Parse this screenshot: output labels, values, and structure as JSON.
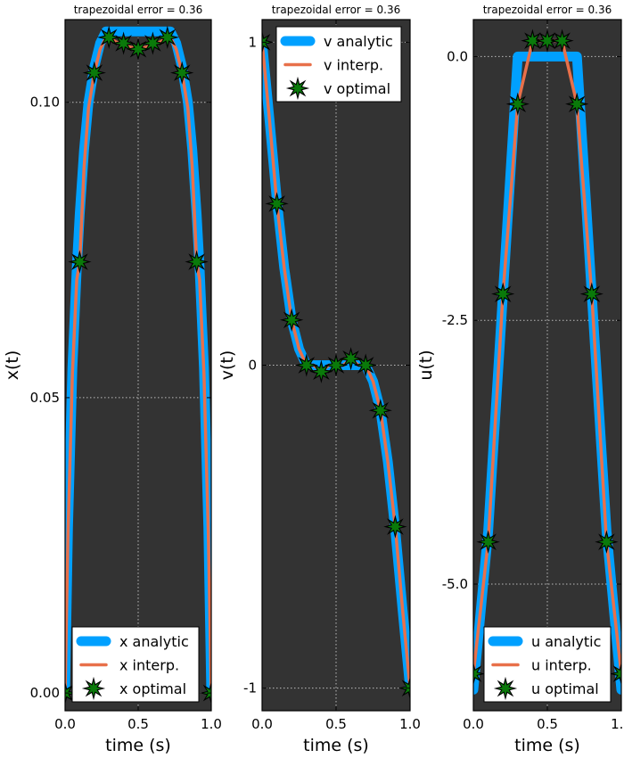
{
  "chart_data": [
    {
      "type": "line",
      "title": "trapezoidal error =  0.36",
      "xlabel": "time (s)",
      "ylabel": "x(t)",
      "xlim": [
        0,
        1
      ],
      "ylim": [
        -0.003,
        0.114
      ],
      "xticks": [
        0,
        0.5,
        1
      ],
      "xtick_labels": [
        "0.0",
        "0.5",
        "1.0"
      ],
      "yticks": [
        0,
        0.05,
        0.1
      ],
      "ytick_labels": [
        "0.00",
        "0.05",
        "0.10"
      ],
      "grid": true,
      "legend": "lower-right",
      "series": [
        {
          "name": "x analytic",
          "color": "#00a0ff",
          "style": "thick-line",
          "x": [
            0,
            0.02,
            0.05,
            0.08,
            0.1,
            0.13,
            0.16,
            0.2,
            0.24,
            0.28,
            0.3,
            0.35,
            0.4,
            0.45,
            0.5,
            0.55,
            0.6,
            0.65,
            0.7,
            0.72,
            0.76,
            0.8,
            0.84,
            0.87,
            0.9,
            0.92,
            0.95,
            0.98,
            1.0
          ],
          "y": [
            0,
            0.028,
            0.055,
            0.072,
            0.081,
            0.092,
            0.1,
            0.106,
            0.11,
            0.112,
            0.112,
            0.112,
            0.112,
            0.112,
            0.112,
            0.112,
            0.112,
            0.112,
            0.112,
            0.112,
            0.11,
            0.106,
            0.1,
            0.092,
            0.081,
            0.072,
            0.055,
            0.028,
            0
          ]
        },
        {
          "name": "x interp.",
          "color": "#e8704a",
          "style": "line",
          "x": [
            0,
            0.02,
            0.05,
            0.08,
            0.1,
            0.13,
            0.16,
            0.2,
            0.24,
            0.28,
            0.3,
            0.35,
            0.4,
            0.45,
            0.5,
            0.55,
            0.6,
            0.65,
            0.7,
            0.72,
            0.76,
            0.8,
            0.84,
            0.87,
            0.9,
            0.92,
            0.95,
            0.98,
            1.0
          ],
          "y": [
            0,
            0.027,
            0.054,
            0.07,
            0.073,
            0.089,
            0.099,
            0.105,
            0.109,
            0.111,
            0.111,
            0.1102,
            0.1097,
            0.1093,
            0.1092,
            0.1093,
            0.1097,
            0.1102,
            0.111,
            0.111,
            0.109,
            0.105,
            0.099,
            0.089,
            0.073,
            0.07,
            0.054,
            0.027,
            0
          ]
        },
        {
          "name": "x optimal",
          "color": "#0a7a0a",
          "style": "markers",
          "x": [
            0,
            0.1,
            0.2,
            0.3,
            0.4,
            0.5,
            0.6,
            0.7,
            0.8,
            0.9,
            1.0
          ],
          "y": [
            0,
            0.073,
            0.105,
            0.111,
            0.11,
            0.109,
            0.11,
            0.111,
            0.105,
            0.073,
            0
          ]
        }
      ]
    },
    {
      "type": "line",
      "title": "trapezoidal error =  0.36",
      "xlabel": "time (s)",
      "ylabel": "v(t)",
      "xlim": [
        0,
        1
      ],
      "ylim": [
        -1.07,
        1.07
      ],
      "xticks": [
        0,
        0.5,
        1
      ],
      "xtick_labels": [
        "0.0",
        "0.5",
        "1.0"
      ],
      "yticks": [
        -1,
        0,
        1
      ],
      "ytick_labels": [
        "-1",
        "0",
        "1"
      ],
      "grid": true,
      "legend": "top-right",
      "series": [
        {
          "name": "v analytic",
          "color": "#00a0ff",
          "style": "thick-line",
          "x": [
            0,
            0.05,
            0.1,
            0.15,
            0.2,
            0.25,
            0.3,
            0.35,
            0.4,
            0.45,
            0.5,
            0.55,
            0.6,
            0.65,
            0.7,
            0.75,
            0.8,
            0.85,
            0.9,
            0.95,
            1.0
          ],
          "y": [
            1.0,
            0.76,
            0.51,
            0.3,
            0.14,
            0.05,
            0.0,
            0.0,
            0.0,
            0.0,
            0.0,
            0.0,
            0.0,
            0.0,
            0.0,
            -0.05,
            -0.14,
            -0.3,
            -0.51,
            -0.76,
            -1.0
          ]
        },
        {
          "name": "v interp.",
          "color": "#e8704a",
          "style": "line",
          "x": [
            0,
            0.05,
            0.1,
            0.15,
            0.2,
            0.25,
            0.3,
            0.35,
            0.4,
            0.45,
            0.5,
            0.55,
            0.6,
            0.65,
            0.7,
            0.75,
            0.8,
            0.85,
            0.9,
            0.95,
            1.0
          ],
          "y": [
            1.0,
            0.76,
            0.5,
            0.3,
            0.14,
            0.05,
            0.0,
            0.0,
            -0.02,
            0.0,
            0.0,
            0.0,
            0.02,
            0.0,
            0.0,
            -0.05,
            -0.14,
            -0.3,
            -0.5,
            -0.76,
            -1.0
          ]
        },
        {
          "name": "v optimal",
          "color": "#0a7a0a",
          "style": "markers",
          "x": [
            0,
            0.1,
            0.2,
            0.3,
            0.4,
            0.5,
            0.6,
            0.7,
            0.8,
            0.9,
            1.0
          ],
          "y": [
            1.0,
            0.5,
            0.14,
            0.0,
            -0.02,
            0.0,
            0.02,
            0.0,
            -0.14,
            -0.5,
            -1.0
          ]
        }
      ]
    },
    {
      "type": "line",
      "title": "trapezoidal error =  0.36",
      "xlabel": "time (s)",
      "ylabel": "u(t)",
      "xlim": [
        0,
        1
      ],
      "ylim": [
        -6.2,
        0.35
      ],
      "xticks": [
        0,
        0.5,
        1
      ],
      "xtick_labels": [
        "0.0",
        "0.5",
        "1.0"
      ],
      "yticks": [
        0,
        -2.5,
        -5
      ],
      "ytick_labels": [
        "0.0",
        "-2.5",
        "-5.0"
      ],
      "grid": true,
      "legend": "lower-right",
      "series": [
        {
          "name": "u analytic",
          "color": "#00a0ff",
          "style": "thick-line",
          "x": [
            0,
            0.1,
            0.2,
            0.3,
            0.3,
            0.7,
            0.7,
            0.8,
            0.9,
            1.0
          ],
          "y": [
            -6.0,
            -4.5,
            -2.25,
            0.0,
            0.0,
            0.0,
            0.0,
            -2.25,
            -4.5,
            -6.0
          ]
        },
        {
          "name": "u interp.",
          "color": "#e8704a",
          "style": "line",
          "x": [
            0,
            0.1,
            0.2,
            0.3,
            0.4,
            0.5,
            0.6,
            0.7,
            0.8,
            0.9,
            1.0
          ],
          "y": [
            -5.85,
            -4.6,
            -2.25,
            -0.45,
            0.15,
            0.15,
            0.15,
            -0.45,
            -2.25,
            -4.6,
            -5.85
          ]
        },
        {
          "name": "u optimal",
          "color": "#0a7a0a",
          "style": "markers",
          "x": [
            0,
            0.1,
            0.2,
            0.3,
            0.4,
            0.5,
            0.6,
            0.7,
            0.8,
            0.9,
            1.0
          ],
          "y": [
            -5.85,
            -4.6,
            -2.25,
            -0.45,
            0.15,
            0.15,
            0.15,
            -0.45,
            -2.25,
            -4.6,
            -5.85
          ]
        }
      ]
    }
  ],
  "style": {
    "plot_background": "#333333",
    "grid_color": "#bbbbbb",
    "legend_background": "#ffffff"
  }
}
